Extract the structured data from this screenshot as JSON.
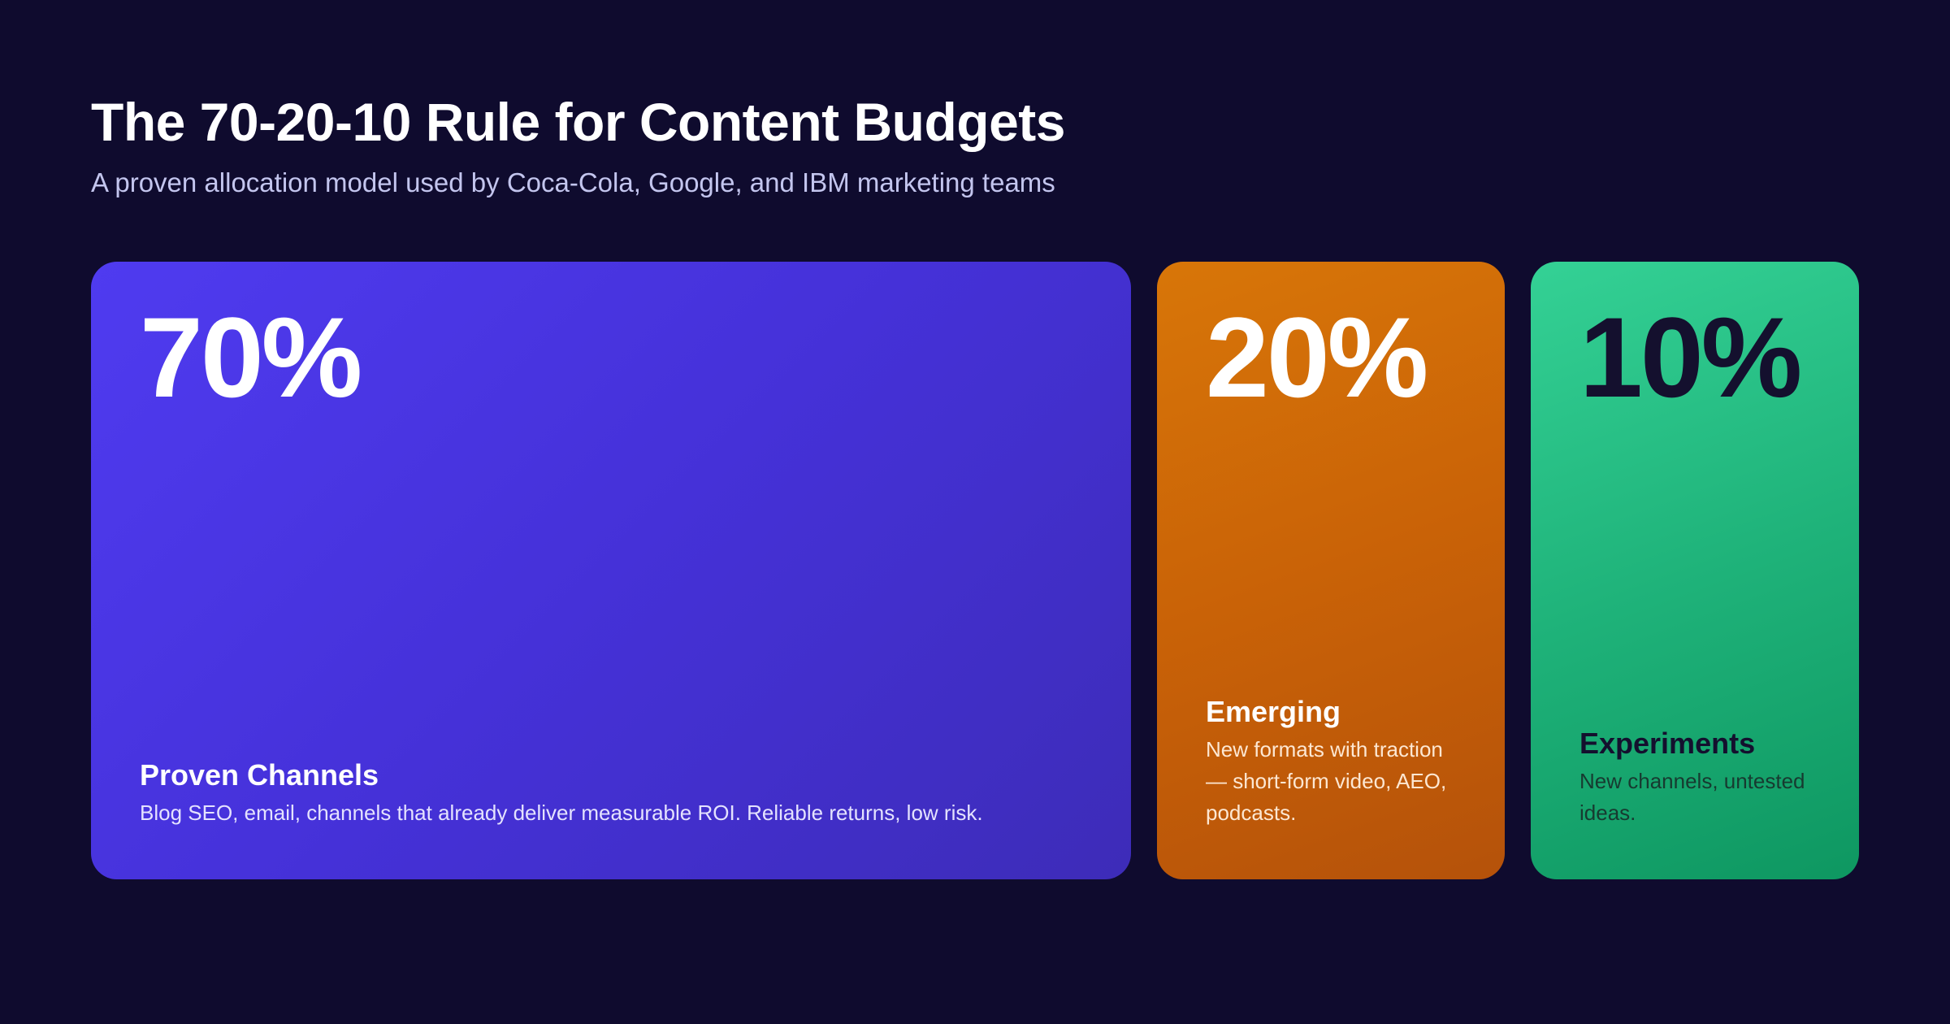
{
  "header": {
    "title": "The 70-20-10 Rule for Content Budgets",
    "subtitle": "A proven allocation model used by Coca-Cola, Google, and IBM marketing teams"
  },
  "cards": [
    {
      "percent": "70%",
      "share": 70,
      "heading": "Proven Channels",
      "description": "Blog SEO, email, channels that already deliver measurable ROI. Reliable returns, low risk.",
      "color": "#4a36e6"
    },
    {
      "percent": "20%",
      "share": 20,
      "heading": "Emerging",
      "description": "New formats with traction — short-form video, AEO, podcasts.",
      "color": "#cc6507"
    },
    {
      "percent": "10%",
      "share": 10,
      "heading": "Experiments",
      "description": "New channels, untested ideas.",
      "color": "#22b87d"
    }
  ]
}
